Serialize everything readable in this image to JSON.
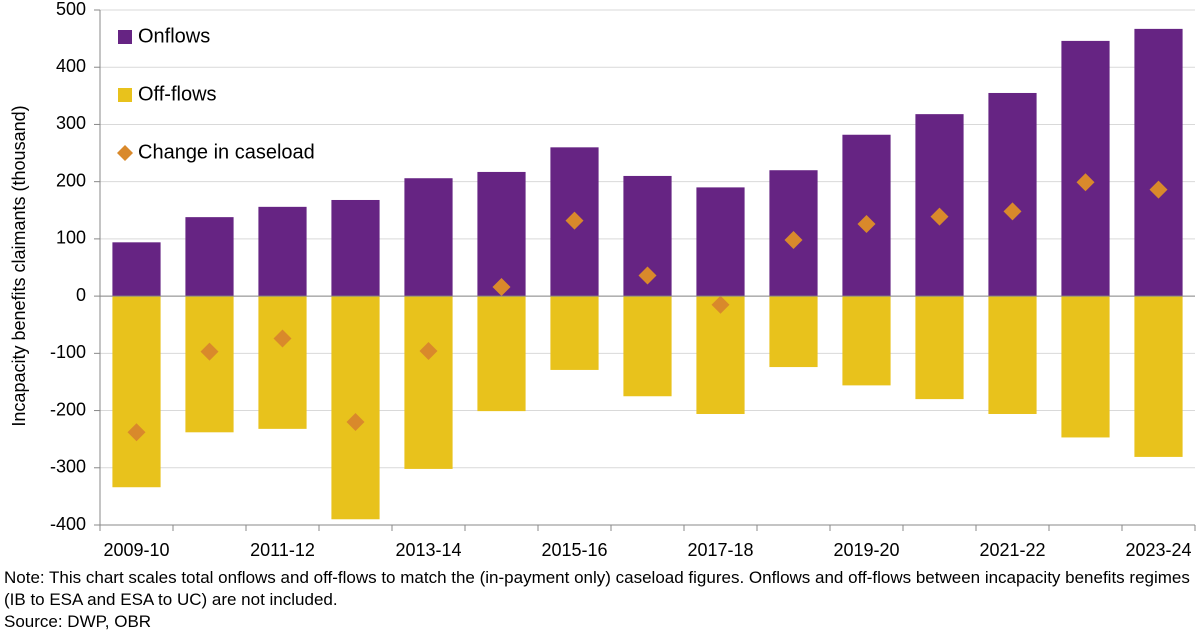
{
  "chart_data": {
    "type": "bar",
    "y_label": "Incapacity benefits claimants (thousand)",
    "categories": [
      "2009-10",
      null,
      "2011-12",
      null,
      "2013-14",
      null,
      "2015-16",
      null,
      "2017-18",
      null,
      "2019-20",
      null,
      "2021-22",
      null,
      "2023-24"
    ],
    "series": [
      {
        "name": "Onflows",
        "color": "#662483",
        "type": "bar",
        "values": [
          94,
          138,
          156,
          168,
          206,
          217,
          260,
          210,
          190,
          220,
          282,
          318,
          355,
          446,
          467
        ]
      },
      {
        "name": "Off-flows",
        "color": "#e8c21c",
        "type": "bar",
        "values": [
          -334,
          -238,
          -232,
          -390,
          -302,
          -201,
          -129,
          -175,
          -206,
          -124,
          -156,
          -180,
          -206,
          -247,
          -281
        ]
      },
      {
        "name": "Change in caseload",
        "color": "#d9892b",
        "type": "scatter",
        "values": [
          -238,
          -97,
          -74,
          -220,
          -96,
          16,
          132,
          36,
          -15,
          98,
          126,
          139,
          148,
          199,
          186
        ]
      }
    ],
    "ylim": [
      -400,
      500
    ],
    "yticks": [
      -400,
      -300,
      -200,
      -100,
      0,
      100,
      200,
      300,
      400,
      500
    ],
    "grid": true,
    "legend": "top-left",
    "note": "Note: This chart scales total onflows and off-flows to match the (in-payment only) caseload figures. Onflows and off-flows between incapacity benefits regimes (IB to ESA and ESA to UC) are not included.",
    "source": "Source: DWP, OBR"
  }
}
